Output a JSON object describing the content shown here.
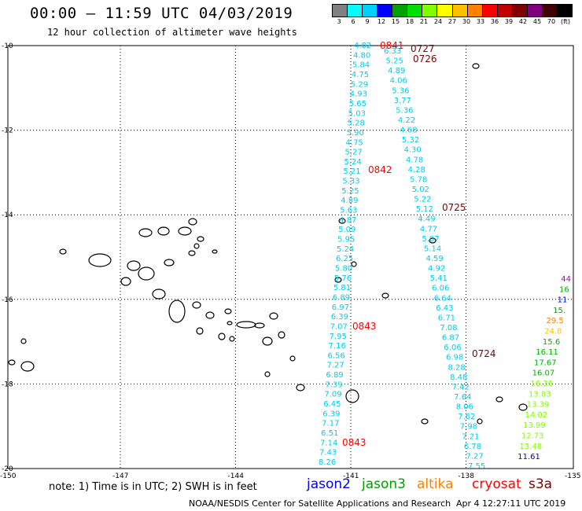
{
  "header": {
    "title": "00:00 — 11:59 UTC 04/03/2019",
    "subtitle": "12 hour collection of altimeter wave heights"
  },
  "scale": {
    "unit": "(ft)",
    "ticks": [
      "3",
      "6",
      "9",
      "12",
      "15",
      "18",
      "21",
      "24",
      "27",
      "30",
      "33",
      "36",
      "39",
      "42",
      "45",
      "70"
    ],
    "colors": [
      "#808080",
      "#00ffff",
      "#00d0ff",
      "#0000ff",
      "#00a000",
      "#00e000",
      "#80ff00",
      "#ffff00",
      "#ffc000",
      "#ff8000",
      "#ff0000",
      "#c00000",
      "#800000",
      "#800080",
      "#400000",
      "#000000"
    ]
  },
  "axes": {
    "lat_ticks": [
      "-10",
      "-12",
      "-14",
      "-16",
      "-18",
      "-20"
    ],
    "lon_ticks": [
      "-150",
      "-147",
      "-144",
      "-141",
      "-138",
      "-135"
    ]
  },
  "tracks": {
    "track1": {
      "color": "#00ccee",
      "values": [
        "4.82",
        "4.80",
        "5.84",
        "4.75",
        "5.29",
        "4.93",
        "5.65",
        "5.03",
        "5.28",
        "5.90",
        "4.75",
        "5.27",
        "5.24",
        "5.21",
        "5.33",
        "5.25",
        "4.89",
        "5.63",
        "4.87",
        "5.09",
        "5.95",
        "5.24",
        "6.25",
        "5.80",
        "5.76",
        "5.81",
        "6.89",
        "6.97",
        "6.39",
        "7.07",
        "7.95",
        "7.16",
        "6.56",
        "7.27",
        "6.89",
        "7.39",
        "7.09",
        "6.45",
        "6.39",
        "7.17",
        "6.51",
        "7.14",
        "7.43",
        "8.26"
      ],
      "time_labels": [
        "0841",
        "0842",
        "0843",
        "0843"
      ]
    },
    "track2": {
      "color": "#00ccee",
      "values": [
        "6.33",
        "5.25",
        "4.89",
        "4.06",
        "5.36",
        "3.77",
        "5.36",
        "4.22",
        "4.68",
        "5.32",
        "4.30",
        "4.78",
        "4.28",
        "5.78",
        "5.02",
        "5.22",
        "5.12",
        "4.49",
        "4.77",
        "5.07",
        "5.14",
        "4.59",
        "4.92",
        "5.41",
        "6.06",
        "6.64",
        "6.43",
        "6.71",
        "7.08",
        "6.87",
        "6.06",
        "6.98",
        "8.28",
        "8.48",
        "7.42",
        "7.64",
        "8.06",
        "7.62",
        "7.98",
        "7.21",
        "6.78",
        "7.27",
        "7.55"
      ],
      "time_labels": [
        "0727",
        "0726",
        "0725",
        "0724"
      ]
    },
    "track3": {
      "values": [
        "44",
        "16",
        "11",
        "15.",
        "29.5",
        "24.8",
        "15.6",
        "16.11",
        "17.67",
        "16.07",
        "16.36",
        "13.83",
        "13.39",
        "14.02",
        "13.99",
        "12.73",
        "13.48",
        "11.61"
      ],
      "colors": [
        "#b000b0",
        "#00b000",
        "#0000cc",
        "#00b000",
        "#ff8000",
        "#ffc000",
        "#00b000",
        "#00b000",
        "#00b000",
        "#00b000",
        "#80ff00",
        "#80ff00",
        "#80ff00",
        "#80ff00",
        "#80ff00",
        "#80ff00",
        "#80ff00",
        "#0000cc"
      ]
    }
  },
  "legend": {
    "note": "note: 1) Time is in UTC; 2) SWH is in feet",
    "satellites": [
      {
        "name": "jason2",
        "color": "#0000ff"
      },
      {
        "name": "jason3",
        "color": "#00a000"
      },
      {
        "name": "altika",
        "color": "#ff8000"
      },
      {
        "name": "cryosat",
        "color": "#ff0000"
      },
      {
        "name": "s3a",
        "color": "#800000"
      }
    ]
  },
  "footer": {
    "credit": "NOAA/NESDIS Center for Satellite Applications and Research",
    "timestamp": "Apr  4 12:27:11 UTC 2019"
  }
}
